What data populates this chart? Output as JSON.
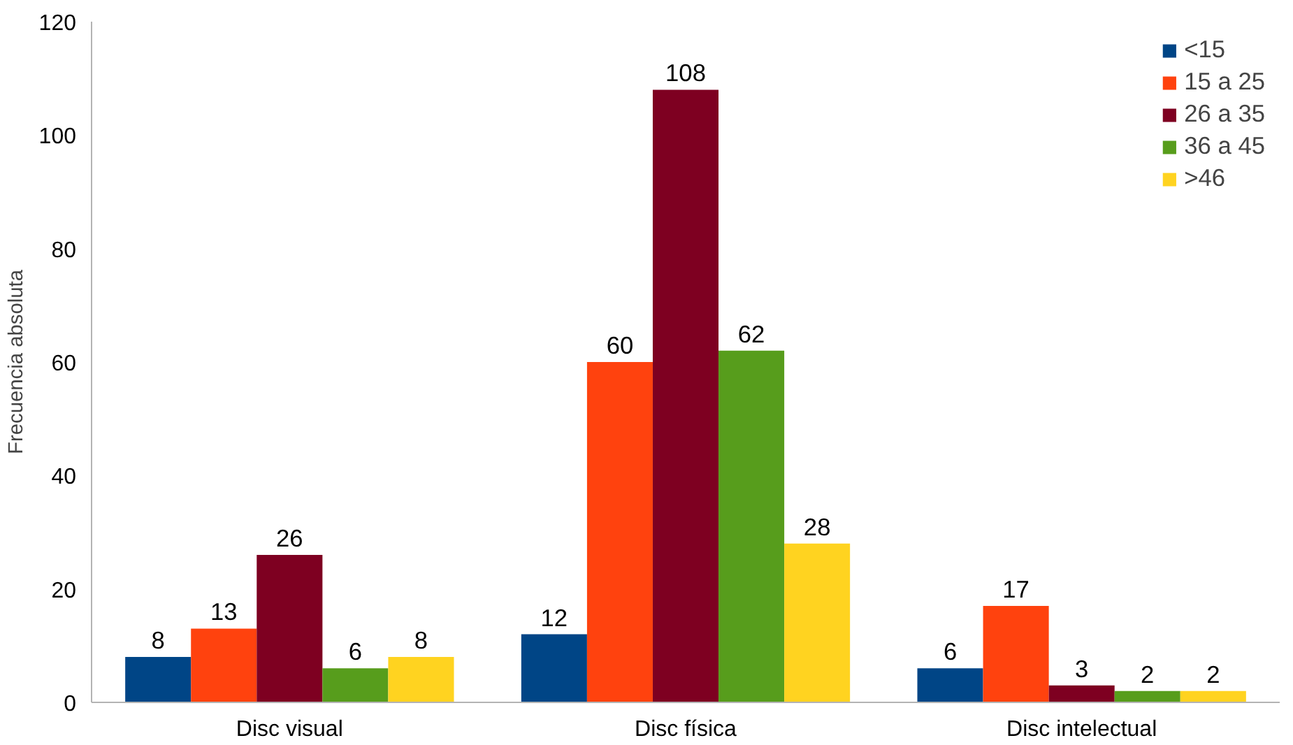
{
  "chart_data": {
    "type": "bar",
    "ylabel": "Frecuencia absoluta",
    "categories": [
      "Disc visual",
      "Disc física",
      "Disc intelectual"
    ],
    "series": [
      {
        "name": "<15",
        "color": "#004586",
        "values": [
          8,
          12,
          6
        ]
      },
      {
        "name": "15 a 25",
        "color": "#ff420e",
        "values": [
          13,
          60,
          17
        ]
      },
      {
        "name": "26 a 35",
        "color": "#7e0021",
        "values": [
          26,
          108,
          3
        ]
      },
      {
        "name": "36 a 45",
        "color": "#579d1c",
        "values": [
          6,
          62,
          2
        ]
      },
      {
        "name": ">46",
        "color": "#ffd320",
        "values": [
          8,
          28,
          2
        ]
      }
    ],
    "ylim": [
      0,
      120
    ],
    "yticks": [
      0,
      20,
      40,
      60,
      80,
      100,
      120
    ],
    "grid": false,
    "legend": "top right",
    "data_labels": true
  }
}
